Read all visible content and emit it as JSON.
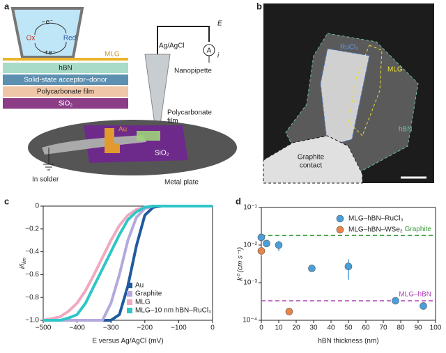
{
  "panel_a": {
    "label": "a",
    "minus_e": "−e⁻",
    "ox": "Ox",
    "red": "Red",
    "plus_e": "+e⁻",
    "layers": [
      "MLG",
      "hBN",
      "Solid-state acceptor–donor",
      "Polycarbonate film",
      "SiO₂"
    ],
    "electrode": "Ag/AgCl",
    "potential": "E",
    "current": "i",
    "ammeter": "A",
    "pipette": "Nanopipette",
    "film": [
      "Polycarbonate",
      "film"
    ],
    "pad": "Au",
    "chip": "SiO₂",
    "solder": "In solder",
    "plate": "Metal plate"
  },
  "panel_b": {
    "label": "b",
    "flake": "RuCl₃",
    "mlg": "MLG",
    "hbn": "hBN",
    "contact": [
      "Graphite",
      "contact"
    ]
  },
  "chart_data": [
    {
      "type": "line",
      "panel": "c",
      "x_label": "E versus Ag/AgCl (mV)",
      "y_label": "i/i",
      "y_label_sub": "lim",
      "x": [
        -500,
        -450,
        -425,
        -400,
        -375,
        -350,
        -325,
        -300,
        -275,
        -250,
        -225,
        -200,
        -175,
        -150,
        -100,
        -50,
        0
      ],
      "series": [
        {
          "name": "Au",
          "color": "#1f5a9e",
          "values": [
            -1,
            -1,
            -1,
            -1,
            -1,
            -1,
            -1,
            -1,
            -0.95,
            -0.7,
            -0.35,
            -0.08,
            -0.01,
            0,
            0,
            0,
            0
          ]
        },
        {
          "name": "Graphite",
          "color": "#b4a9dc",
          "values": [
            -1,
            -1,
            -1,
            -1,
            -1,
            -1,
            -1,
            -0.85,
            -0.6,
            -0.3,
            -0.1,
            -0.02,
            0,
            0,
            0,
            0,
            0
          ]
        },
        {
          "name": "MLG",
          "color": "#f0a9c0",
          "values": [
            -1,
            -0.97,
            -0.92,
            -0.85,
            -0.74,
            -0.6,
            -0.45,
            -0.3,
            -0.17,
            -0.08,
            -0.03,
            -0.01,
            0,
            0,
            0,
            0,
            0
          ]
        },
        {
          "name": "MLG–10 nm hBN–RuCl₃",
          "color": "#2ec6c6",
          "values": [
            -1,
            -1,
            -0.98,
            -0.95,
            -0.85,
            -0.7,
            -0.55,
            -0.4,
            -0.25,
            -0.12,
            -0.05,
            -0.01,
            0,
            0,
            0,
            0,
            0
          ]
        }
      ],
      "xlim": [
        -500,
        0
      ],
      "xticks": [
        {
          "value": -500,
          "label": "−500"
        },
        {
          "value": -400,
          "label": "−400"
        },
        {
          "value": -300,
          "label": "−300"
        },
        {
          "value": -200,
          "label": "−200"
        },
        {
          "value": -100,
          "label": "−100"
        },
        0
      ],
      "ylim": [
        -1,
        0
      ],
      "yticks": [
        {
          "value": -1,
          "label": "−1.0"
        },
        {
          "value": -0.8,
          "label": "−0.8"
        },
        {
          "value": -0.6,
          "label": "−0.6"
        },
        {
          "value": -0.4,
          "label": "−0.4"
        },
        {
          "value": -0.2,
          "label": "−0.2"
        },
        0
      ],
      "legend": "lower right"
    },
    {
      "type": "scatter",
      "panel": "d",
      "x_label": "hBN thickness (nm)",
      "y_label": "k⁰ (cm s⁻¹)",
      "log_y": true,
      "series": [
        {
          "name": "MLG–hBN–RuCl₃",
          "color": "#4a9fd8",
          "x": [
            0,
            3,
            10,
            29,
            50,
            77,
            93
          ],
          "values": [
            0.016,
            0.011,
            0.01,
            0.0024,
            0.0027,
            0.00033,
            0.00024
          ],
          "errors": [
            0.003,
            0.002,
            0.003,
            0.0003,
            0.0015,
            3e-05,
            4e-05
          ]
        },
        {
          "name": "MLG–hBN–WSe₂",
          "color": "#e8844a",
          "x": [
            0,
            16
          ],
          "values": [
            0.007,
            0.00017
          ],
          "errors": [
            0.002,
            3e-05
          ]
        }
      ],
      "hlines": [
        {
          "label": "Graphite",
          "value": 0.018,
          "color": "#3a9a3a"
        },
        {
          "label": "MLG–hBN",
          "value": 0.00033,
          "color": "#b040b8"
        }
      ],
      "xlim": [
        0,
        100
      ],
      "xticks": [
        0,
        10,
        20,
        30,
        40,
        50,
        60,
        70,
        80,
        90,
        100
      ],
      "ylim": [
        0.0001,
        0.1
      ],
      "yticks": [
        {
          "value": 0.0001,
          "label": "10⁻⁴"
        },
        {
          "value": 0.001,
          "label": "10⁻³"
        },
        {
          "value": 0.01,
          "label": "10⁻²"
        },
        {
          "value": 0.1,
          "label": "10⁻¹"
        }
      ],
      "legend": "upper right"
    }
  ]
}
